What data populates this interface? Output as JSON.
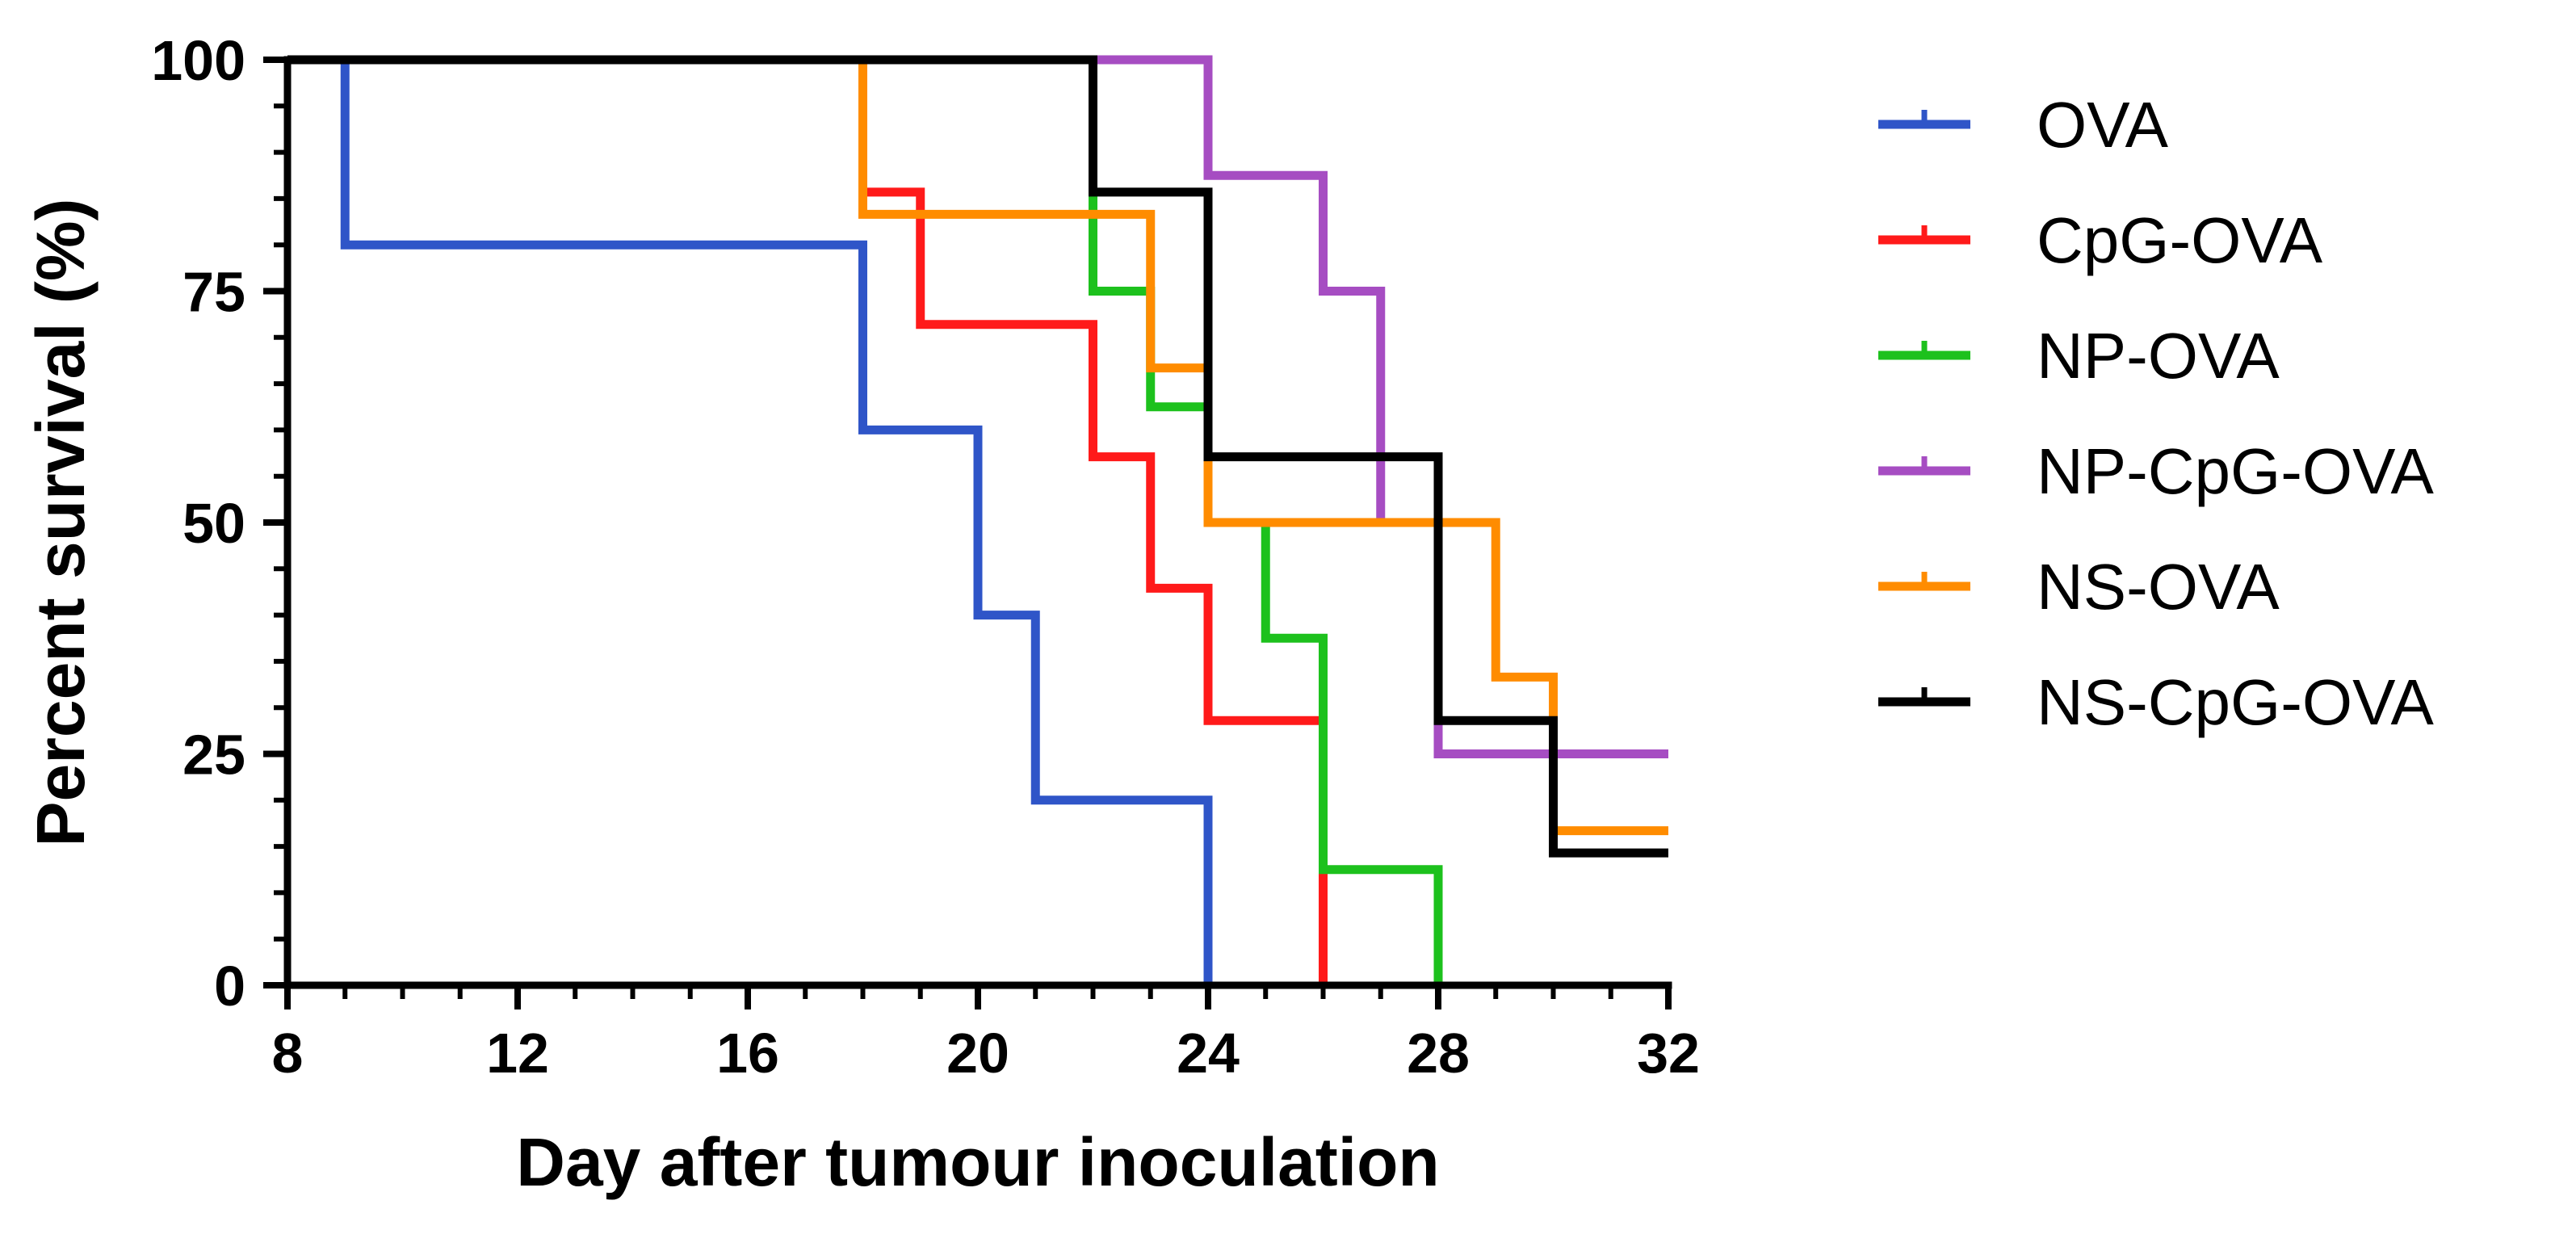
{
  "chart_data": {
    "type": "line",
    "subtype": "kaplan-meier-step",
    "title": "",
    "xlabel": "Day after tumour inoculation",
    "ylabel": "Percent survival (%)",
    "xlim": [
      8,
      32
    ],
    "ylim": [
      0,
      100
    ],
    "xticks": [
      8,
      12,
      16,
      20,
      24,
      28,
      32
    ],
    "yticks": [
      0,
      25,
      50,
      75,
      100
    ],
    "legend_position": "right",
    "series": [
      {
        "name": "OVA",
        "color": "#2f55c8",
        "steps": [
          [
            8,
            100
          ],
          [
            9,
            80
          ],
          [
            18,
            60
          ],
          [
            20,
            40
          ],
          [
            21,
            20
          ],
          [
            24,
            0
          ]
        ],
        "end_x": 24,
        "censored": []
      },
      {
        "name": "CpG-OVA",
        "color": "#ff1a1a",
        "steps": [
          [
            8,
            100
          ],
          [
            18,
            85.7
          ],
          [
            19,
            71.4
          ],
          [
            22,
            57.1
          ],
          [
            23,
            42.9
          ],
          [
            24,
            28.6
          ],
          [
            26,
            0
          ]
        ],
        "end_x": 26,
        "censored": []
      },
      {
        "name": "NP-OVA",
        "color": "#1dc11d",
        "steps": [
          [
            8,
            100
          ],
          [
            22,
            75
          ],
          [
            23,
            62.5
          ],
          [
            24,
            50
          ],
          [
            25,
            37.5
          ],
          [
            26,
            12.5
          ],
          [
            28,
            0
          ]
        ],
        "end_x": 28,
        "censored": []
      },
      {
        "name": "NP-CpG-OVA",
        "color": "#a64dc2",
        "steps": [
          [
            8,
            100
          ],
          [
            24,
            87.5
          ],
          [
            26,
            75
          ],
          [
            27,
            50
          ],
          [
            28,
            25
          ]
        ],
        "end_x": 32,
        "censored": []
      },
      {
        "name": "NS-OVA",
        "color": "#ff8c00",
        "steps": [
          [
            8,
            100
          ],
          [
            18,
            83.3
          ],
          [
            23,
            66.7
          ],
          [
            24,
            50
          ],
          [
            29,
            33.3
          ],
          [
            30,
            16.7
          ]
        ],
        "end_x": 32,
        "censored": [
          [
            24,
            61
          ]
        ]
      },
      {
        "name": "NS-CpG-OVA",
        "color": "#000000",
        "steps": [
          [
            8,
            100
          ],
          [
            22,
            85.7
          ],
          [
            24,
            57.1
          ],
          [
            28,
            28.6
          ],
          [
            30,
            14.3
          ]
        ],
        "end_x": 32,
        "censored": [
          [
            24,
            67
          ],
          [
            30,
            16
          ]
        ]
      }
    ]
  }
}
